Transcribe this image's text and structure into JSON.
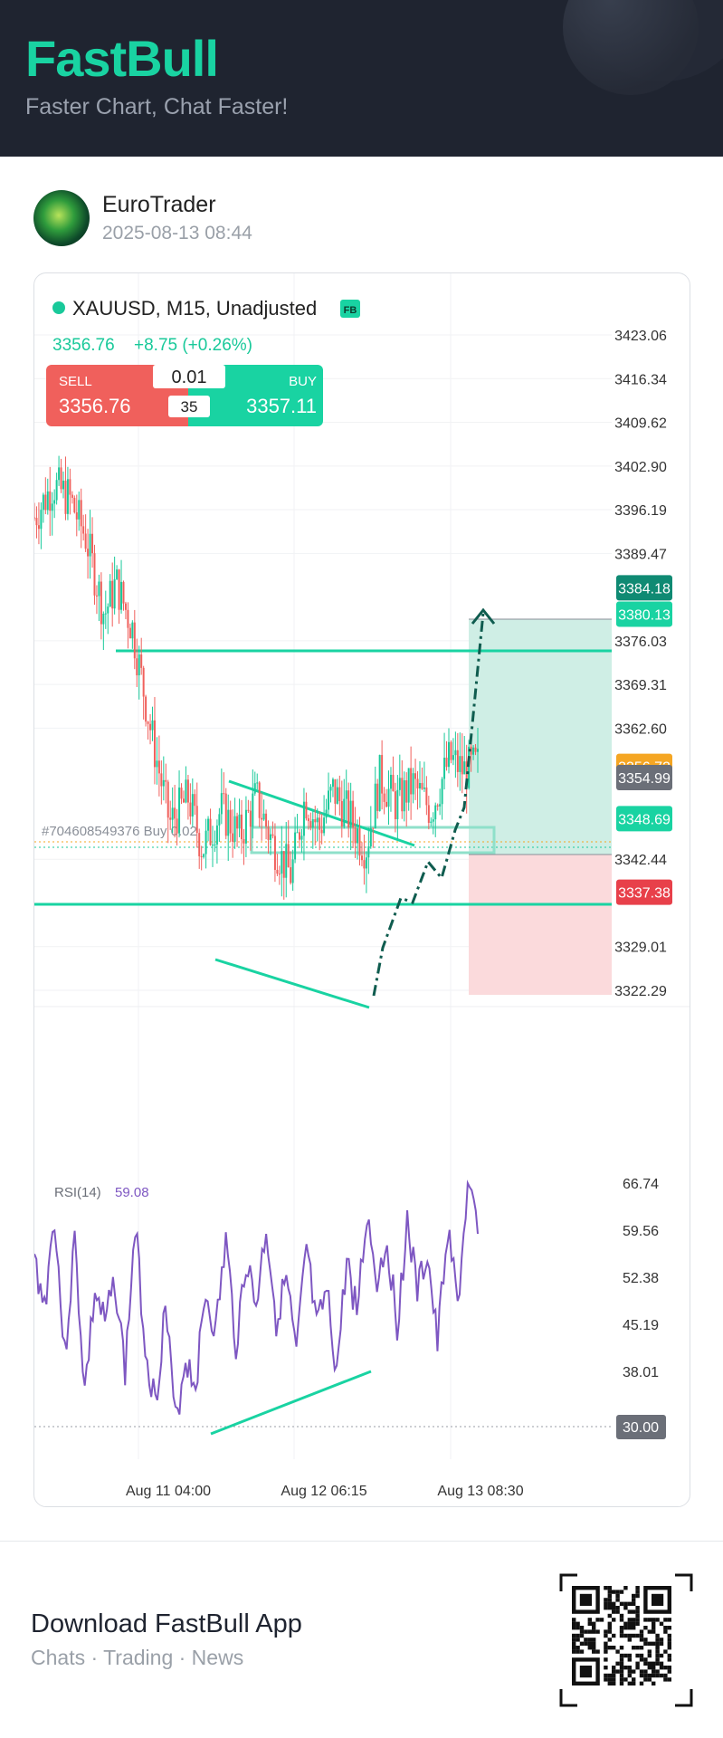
{
  "header": {
    "brand": "FastBull",
    "tagline": "Faster Chart, Chat Faster!"
  },
  "post": {
    "author": "EuroTrader",
    "datetime": "2025-08-13 08:44"
  },
  "ticker": {
    "title": "XAUUSD, M15, Unadjusted",
    "badge": "FB",
    "price": "3356.76",
    "change": "+8.75 (+0.26%)",
    "sell_label": "SELL",
    "sell_price": "3356.76",
    "buy_label": "BUY",
    "buy_price": "3357.11",
    "lot": "0.01",
    "spread": "35"
  },
  "order_label": "#704608549376 Buy 0.02",
  "colors": {
    "up": "#19c99a",
    "down": "#f0605c",
    "rsi": "#7e57c2",
    "accent": "#19d3a2"
  },
  "chart_data": {
    "type": "candlestick",
    "symbol": "XAUUSD",
    "timeframe": "M15",
    "y_axis_ticks": [
      "3423.06",
      "3416.34",
      "3409.62",
      "3402.90",
      "3396.19",
      "3389.47",
      "3376.03",
      "3369.31",
      "3362.60",
      "3342.44",
      "3329.01",
      "3322.29"
    ],
    "ylim": [
      3317,
      3427
    ],
    "x_axis_ticks": [
      "Aug 11 04:00",
      "Aug 12 06:15",
      "Aug 13 08:30"
    ],
    "price_tags": [
      {
        "value": "3384.18",
        "color": "#0f8a73"
      },
      {
        "value": "3380.13",
        "color": "#19d3a2"
      },
      {
        "value": "3356.72",
        "color": "#f5a623"
      },
      {
        "value": "3354.99",
        "color": "#6b6f78"
      },
      {
        "value": "3348.69",
        "color": "#19d3a2"
      },
      {
        "value": "3337.38",
        "color": "#e8404a"
      }
    ],
    "horizontal_levels": [
      3380.13,
      3348.69
    ],
    "position": {
      "entry": 3354.99,
      "take_profit": 3384.18,
      "stop_loss": 3337.38
    },
    "price_path": [
      [
        0,
        3395
      ],
      [
        8,
        3400
      ],
      [
        15,
        3398
      ],
      [
        22,
        3392
      ],
      [
        30,
        3380
      ],
      [
        35,
        3385
      ],
      [
        42,
        3378
      ],
      [
        50,
        3362
      ],
      [
        58,
        3348
      ],
      [
        66,
        3352
      ],
      [
        72,
        3344
      ],
      [
        80,
        3350
      ],
      [
        88,
        3346
      ],
      [
        95,
        3352
      ],
      [
        102,
        3345
      ],
      [
        110,
        3340
      ],
      [
        116,
        3352
      ],
      [
        122,
        3347
      ],
      [
        128,
        3353
      ],
      [
        135,
        3349
      ],
      [
        142,
        3344
      ],
      [
        148,
        3355
      ],
      [
        155,
        3351
      ],
      [
        162,
        3354
      ],
      [
        170,
        3350
      ],
      [
        178,
        3358
      ],
      [
        184,
        3356
      ],
      [
        190,
        3357
      ]
    ],
    "rsi": {
      "label": "RSI(14)",
      "value": "59.08",
      "ticks": [
        "66.74",
        "59.56",
        "52.38",
        "45.19",
        "38.01"
      ],
      "level_tag": "30.00",
      "ylim": [
        28,
        68
      ],
      "values": [
        55,
        48,
        62,
        40,
        58,
        35,
        50,
        45,
        52,
        38,
        60,
        42,
        33,
        48,
        30,
        40,
        36,
        50,
        44,
        58,
        42,
        55,
        48,
        60,
        46,
        52,
        40,
        57,
        44,
        50,
        38,
        55,
        47,
        62,
        52,
        58,
        45,
        61,
        50,
        56,
        42,
        60,
        48,
        66,
        59
      ]
    }
  },
  "footer": {
    "title": "Download FastBull App",
    "subtitle": "Chats · Trading · News"
  }
}
